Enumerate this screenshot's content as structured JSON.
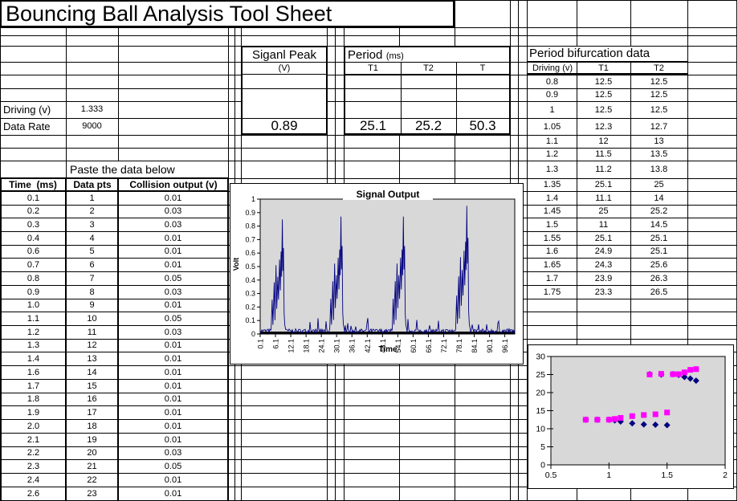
{
  "sheet_title": "Bouncing Ball Analysis Tool Sheet",
  "params": {
    "driving_label": "Driving (v)",
    "driving_value": "1.333",
    "data_rate_label": "Data Rate",
    "data_rate_value": "9000"
  },
  "signal_peak": {
    "header": "Siganl Peak",
    "unit": "(V)",
    "value": "0.89"
  },
  "period": {
    "header": "Period",
    "unit": "(ms)",
    "columns": [
      "T1",
      "T2",
      "T"
    ],
    "values": [
      "25.1",
      "25.2",
      "50.3"
    ]
  },
  "paste_note": "Paste the data below",
  "data_table": {
    "headers": [
      "Time  (ms)",
      "Data pts",
      "Collision output (v)"
    ],
    "rows": [
      [
        "0.1",
        "1",
        "0.01"
      ],
      [
        "0.2",
        "2",
        "0.03"
      ],
      [
        "0.3",
        "3",
        "0.03"
      ],
      [
        "0.4",
        "4",
        "0.01"
      ],
      [
        "0.6",
        "5",
        "0.01"
      ],
      [
        "0.7",
        "6",
        "0.01"
      ],
      [
        "0.8",
        "7",
        "0.05"
      ],
      [
        "0.9",
        "8",
        "0.03"
      ],
      [
        "1.0",
        "9",
        "0.01"
      ],
      [
        "1.1",
        "10",
        "0.05"
      ],
      [
        "1.2",
        "11",
        "0.03"
      ],
      [
        "1.3",
        "12",
        "0.01"
      ],
      [
        "1.4",
        "13",
        "0.01"
      ],
      [
        "1.6",
        "14",
        "0.01"
      ],
      [
        "1.7",
        "15",
        "0.01"
      ],
      [
        "1.8",
        "16",
        "0.01"
      ],
      [
        "1.9",
        "17",
        "0.01"
      ],
      [
        "2.0",
        "18",
        "0.01"
      ],
      [
        "2.1",
        "19",
        "0.01"
      ],
      [
        "2.2",
        "20",
        "0.03"
      ],
      [
        "2.3",
        "21",
        "0.05"
      ],
      [
        "2.4",
        "22",
        "0.01"
      ],
      [
        "2.6",
        "23",
        "0.01"
      ]
    ]
  },
  "bifurcation_table": {
    "title": "Period bifurcation data",
    "headers": [
      "Driving (v)",
      "T1",
      "T2"
    ],
    "rows": [
      [
        "0.8",
        "12.5",
        "12.5"
      ],
      [
        "0.9",
        "12.5",
        "12.5"
      ],
      [
        "1",
        "12.5",
        "12.5"
      ],
      [
        "1.05",
        "12.3",
        "12.7"
      ],
      [
        "1.1",
        "12",
        "13"
      ],
      [
        "1.2",
        "11.5",
        "13.5"
      ],
      [
        "1.3",
        "11.2",
        "13.8"
      ],
      [
        "1.35",
        "25.1",
        "25"
      ],
      [
        "1.4",
        "11.1",
        "14"
      ],
      [
        "1.45",
        "25",
        "25.2"
      ],
      [
        "1.5",
        "11",
        "14.5"
      ],
      [
        "1.55",
        "25.1",
        "25.1"
      ],
      [
        "1.6",
        "24.9",
        "25.1"
      ],
      [
        "1.65",
        "24.3",
        "25.6"
      ],
      [
        "1.7",
        "23.9",
        "26.3"
      ],
      [
        "1.75",
        "23.3",
        "26.5"
      ]
    ]
  },
  "chart_data": [
    {
      "name": "signal-output",
      "type": "line",
      "title": "Signal Output",
      "xlabel": "Time",
      "ylabel": "Volt",
      "xlim": [
        0.1,
        100
      ],
      "ylim": [
        0,
        1
      ],
      "x_ticks": [
        "0.1",
        "6.1",
        "12.1",
        "18.1",
        "24.1",
        "30.1",
        "36.1",
        "42.1",
        "48.1",
        "54.1",
        "60.1",
        "66.1",
        "72.1",
        "78.1",
        "84.1",
        "90.1",
        "96.1"
      ],
      "y_ticks": [
        "0",
        "0.1",
        "0.2",
        "0.3",
        "0.4",
        "0.5",
        "0.6",
        "0.7",
        "0.8",
        "0.9",
        "1"
      ],
      "line_color": "#000080",
      "plot_bg": "#d8d8d8",
      "grid": false,
      "legend": false,
      "baseline_noise_range": [
        0.01,
        0.05
      ],
      "peaks": [
        {
          "t": 8.8,
          "v": 0.85
        },
        {
          "t": 31.8,
          "v": 0.87
        },
        {
          "t": 56.3,
          "v": 0.87
        },
        {
          "t": 81.2,
          "v": 0.95
        }
      ]
    },
    {
      "name": "period-bifurcation",
      "type": "scatter",
      "title": "",
      "xlim": [
        0.5,
        2
      ],
      "ylim": [
        0,
        30
      ],
      "x_ticks": [
        "0.5",
        "1",
        "1.5",
        "2"
      ],
      "y_ticks": [
        "0",
        "5",
        "10",
        "15",
        "20",
        "25",
        "30"
      ],
      "plot_bg": "#d8d8d8",
      "grid": false,
      "legend": false,
      "series": [
        {
          "name": "T1",
          "marker": "diamond",
          "color": "#000080",
          "x": [
            0.8,
            0.9,
            1,
            1.05,
            1.1,
            1.2,
            1.3,
            1.35,
            1.4,
            1.45,
            1.5,
            1.55,
            1.6,
            1.65,
            1.7,
            1.75
          ],
          "y": [
            12.5,
            12.5,
            12.5,
            12.3,
            12,
            11.5,
            11.2,
            25.1,
            11.1,
            25,
            11,
            25.1,
            24.9,
            24.3,
            23.9,
            23.3
          ]
        },
        {
          "name": "T2",
          "marker": "square",
          "color": "#ff00ff",
          "x": [
            0.8,
            0.9,
            1,
            1.05,
            1.1,
            1.2,
            1.3,
            1.35,
            1.4,
            1.45,
            1.5,
            1.55,
            1.6,
            1.65,
            1.7,
            1.75
          ],
          "y": [
            12.5,
            12.5,
            12.5,
            12.7,
            13,
            13.5,
            13.8,
            25,
            14,
            25.2,
            14.5,
            25.1,
            25.1,
            25.6,
            26.3,
            26.5
          ]
        }
      ]
    }
  ]
}
